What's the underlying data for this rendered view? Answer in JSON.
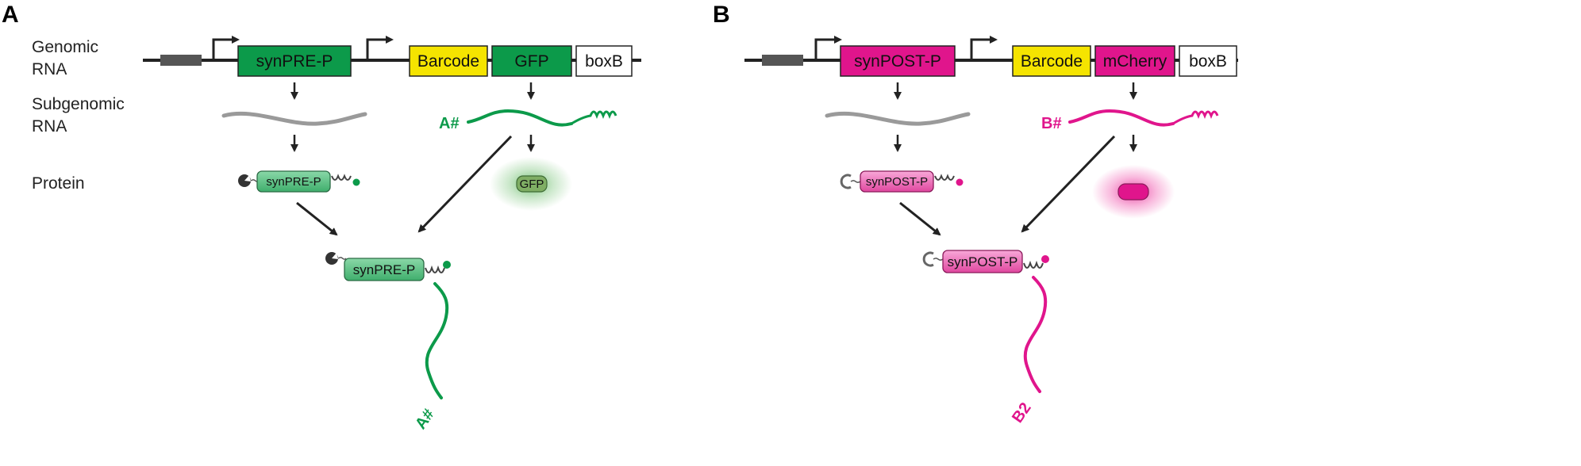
{
  "panel_a": {
    "letter": "A",
    "row_labels": {
      "genomic_line1": "Genomic",
      "genomic_line2": "RNA",
      "subgenomic_line1": "Subgenomic",
      "subgenomic_line2": "RNA",
      "protein": "Protein"
    },
    "construct": {
      "promoter_box": "synPRE-P",
      "barcode_box": "Barcode",
      "reporter_box": "GFP",
      "tag_box": "boxB"
    },
    "rna_label": "A#",
    "protein_label": "synPRE-P",
    "reporter_protein_label": "GFP",
    "complex_protein_label": "synPRE-P",
    "complex_rna_label": "A#",
    "colors": {
      "accent": "#0c9a4a",
      "accent_light": "#5cc487",
      "reporter_glow": "#6fbf6f"
    }
  },
  "panel_b": {
    "letter": "B",
    "construct": {
      "promoter_box": "synPOST-P",
      "barcode_box": "Barcode",
      "reporter_box": "mCherry",
      "tag_box": "boxB"
    },
    "rna_label": "B#",
    "protein_label": "synPOST-P",
    "complex_protein_label": "synPOST-P",
    "complex_rna_label": "B2",
    "colors": {
      "accent": "#e0158c",
      "accent_light": "#f07ac0",
      "reporter_glow": "#ee3aa0"
    }
  },
  "shared_colors": {
    "barcode_fill": "#f5e400",
    "line": "#222222",
    "grey_rna": "#9a9a9a"
  }
}
